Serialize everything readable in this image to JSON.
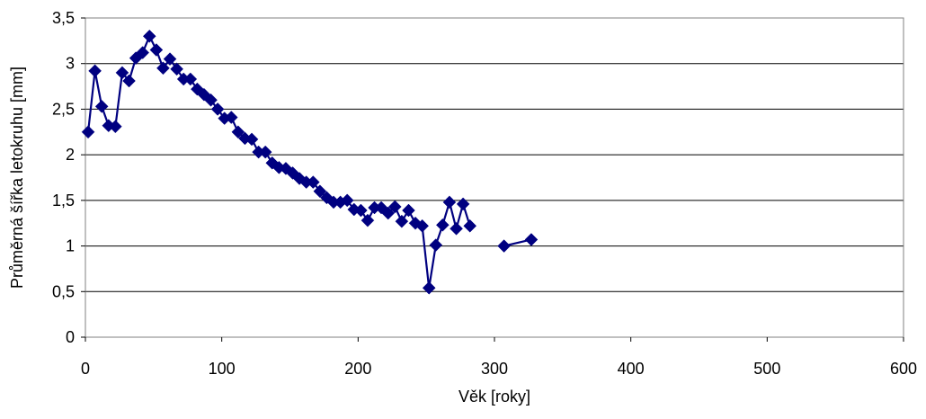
{
  "chart_data": {
    "type": "line",
    "title": "",
    "xlabel": "Věk [roky]",
    "ylabel": "Průměrná šířka letokruhu [mm]",
    "xlim": [
      0,
      600
    ],
    "ylim": [
      0,
      3.5
    ],
    "x_ticks": [
      0,
      100,
      200,
      300,
      400,
      500,
      600
    ],
    "y_ticks": [
      0,
      0.5,
      1,
      1.5,
      2,
      2.5,
      3,
      3.5
    ],
    "x_tick_labels": [
      "0",
      "100",
      "200",
      "300",
      "400",
      "500",
      "600"
    ],
    "y_tick_labels": [
      "0",
      "0,5",
      "1",
      "1,5",
      "2",
      "2,5",
      "3",
      "3,5"
    ],
    "grid": "horizontal",
    "legend": "none",
    "marker": "diamond",
    "color": "#000080",
    "series": [
      {
        "points": [
          [
            2,
            2.25
          ],
          [
            7,
            2.92
          ],
          [
            12,
            2.53
          ],
          [
            17,
            2.32
          ],
          [
            22,
            2.31
          ],
          [
            27,
            2.9
          ],
          [
            32,
            2.81
          ],
          [
            37,
            3.06
          ],
          [
            42,
            3.12
          ],
          [
            47,
            3.3
          ],
          [
            52,
            3.15
          ],
          [
            57,
            2.95
          ],
          [
            62,
            3.05
          ],
          [
            67,
            2.94
          ],
          [
            72,
            2.83
          ],
          [
            77,
            2.83
          ],
          [
            82,
            2.72
          ],
          [
            87,
            2.66
          ],
          [
            92,
            2.6
          ],
          [
            97,
            2.5
          ],
          [
            102,
            2.4
          ],
          [
            107,
            2.41
          ],
          [
            112,
            2.25
          ],
          [
            117,
            2.18
          ],
          [
            122,
            2.17
          ],
          [
            127,
            2.03
          ],
          [
            132,
            2.03
          ],
          [
            137,
            1.91
          ],
          [
            142,
            1.86
          ],
          [
            147,
            1.85
          ],
          [
            152,
            1.8
          ],
          [
            157,
            1.74
          ],
          [
            162,
            1.7
          ],
          [
            167,
            1.7
          ],
          [
            172,
            1.6
          ],
          [
            177,
            1.53
          ],
          [
            182,
            1.48
          ],
          [
            187,
            1.48
          ],
          [
            192,
            1.5
          ],
          [
            197,
            1.4
          ],
          [
            202,
            1.39
          ],
          [
            207,
            1.28
          ],
          [
            212,
            1.42
          ],
          [
            217,
            1.42
          ],
          [
            222,
            1.36
          ],
          [
            227,
            1.43
          ],
          [
            232,
            1.27
          ],
          [
            237,
            1.39
          ],
          [
            242,
            1.25
          ],
          [
            247,
            1.22
          ],
          [
            252,
            0.54
          ],
          [
            257,
            1.01
          ],
          [
            262,
            1.23
          ],
          [
            267,
            1.48
          ],
          [
            272,
            1.19
          ],
          [
            277,
            1.46
          ],
          [
            282,
            1.22
          ]
        ]
      },
      {
        "points": [
          [
            307,
            1.0
          ],
          [
            327,
            1.07
          ]
        ]
      }
    ]
  }
}
